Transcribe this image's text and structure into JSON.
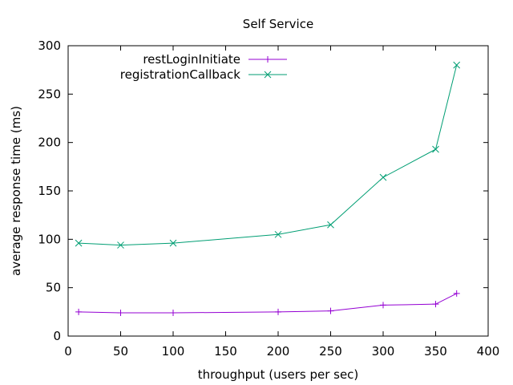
{
  "chart_data": {
    "type": "line",
    "title": "Self Service",
    "xlabel": "throughput (users per sec)",
    "ylabel": "average response time (ms)",
    "xlim": [
      0,
      400
    ],
    "ylim": [
      0,
      300
    ],
    "xticks": [
      0,
      50,
      100,
      150,
      200,
      250,
      300,
      350,
      400
    ],
    "yticks": [
      0,
      50,
      100,
      150,
      200,
      250,
      300
    ],
    "grid": false,
    "legend_position": "top-left",
    "series": [
      {
        "name": "restLoginInitiate",
        "color": "#9400d3",
        "marker": "plus",
        "x": [
          10,
          50,
          100,
          200,
          250,
          300,
          350,
          370
        ],
        "y": [
          25,
          24,
          24,
          25,
          26,
          32,
          33,
          44
        ]
      },
      {
        "name": "registrationCallback",
        "color": "#009e73",
        "marker": "cross",
        "x": [
          10,
          50,
          100,
          200,
          250,
          300,
          350,
          370
        ],
        "y": [
          96,
          94,
          96,
          105,
          115,
          164,
          193,
          280
        ]
      }
    ]
  }
}
